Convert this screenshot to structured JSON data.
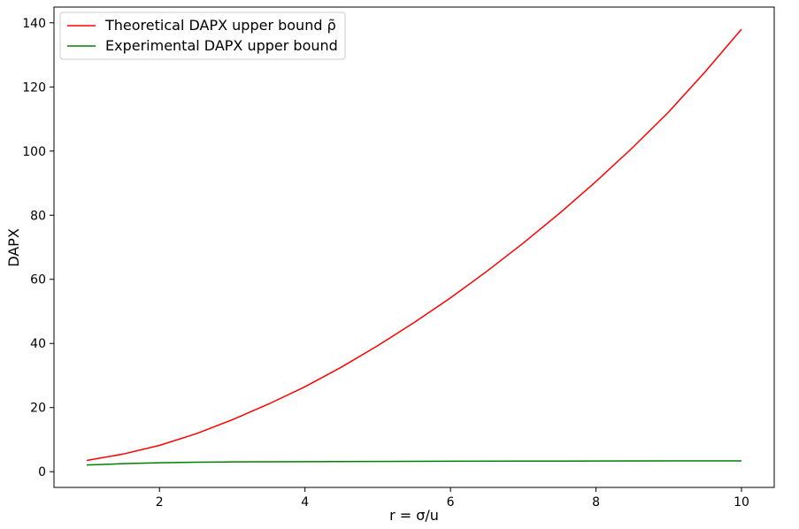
{
  "chart_data": {
    "type": "line",
    "xlabel": "r = σ/u",
    "ylabel": "DAPX",
    "xlim": [
      0.55,
      10.45
    ],
    "ylim": [
      -4.9,
      144.9
    ],
    "xticks": [
      2,
      4,
      6,
      8,
      10
    ],
    "yticks": [
      0,
      20,
      40,
      60,
      80,
      100,
      120,
      140
    ],
    "grid": false,
    "legend_position": "top-left",
    "series": [
      {
        "name": "Theoretical DAPX upper bound ρ̃",
        "color": "#ff0000",
        "x": [
          1,
          1.5,
          2,
          2.5,
          3,
          3.5,
          4,
          4.5,
          5,
          5.5,
          6,
          6.5,
          7,
          7.5,
          8,
          8.5,
          9,
          9.5,
          10
        ],
        "y": [
          3.5,
          5.5,
          8.2,
          11.8,
          16.2,
          21.1,
          26.5,
          32.6,
          39.3,
          46.5,
          54.2,
          62.5,
          71.3,
          80.6,
          90.5,
          101.0,
          112.2,
          124.7,
          138.0
        ]
      },
      {
        "name": "Experimental DAPX upper bound",
        "color": "#008000",
        "x": [
          1,
          1.5,
          2,
          2.5,
          3,
          4,
          5,
          6,
          7,
          8,
          9,
          10
        ],
        "y": [
          2.1,
          2.5,
          2.8,
          2.95,
          3.05,
          3.15,
          3.22,
          3.27,
          3.3,
          3.33,
          3.36,
          3.38
        ]
      }
    ]
  }
}
